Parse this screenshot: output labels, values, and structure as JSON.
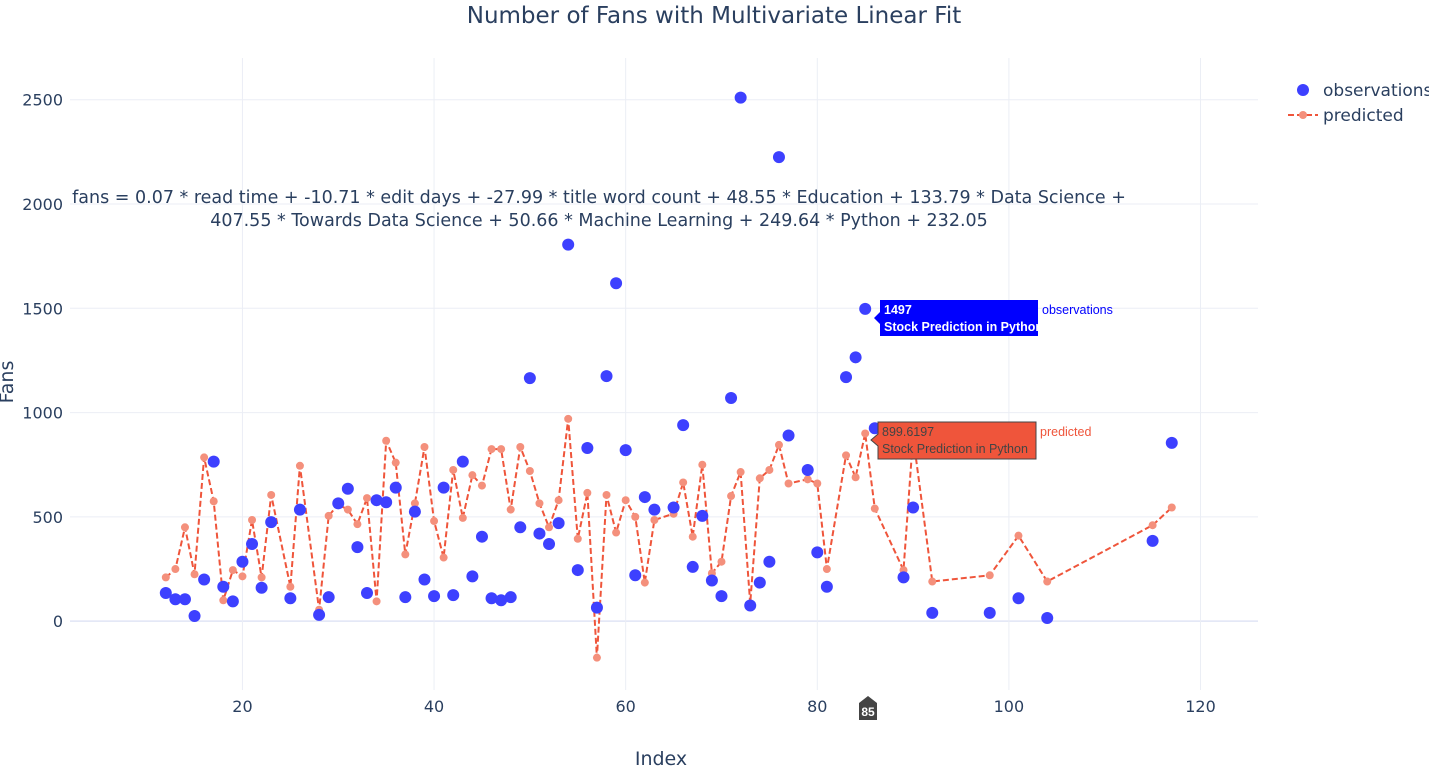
{
  "chart_data": {
    "type": "scatter",
    "title": "Number of Fans with Multivariate Linear Fit",
    "xlabel": "Index",
    "ylabel": "Fans",
    "xlim": [
      2,
      126
    ],
    "ylim": [
      -330,
      2700
    ],
    "x_ticks": [
      20,
      40,
      60,
      80,
      100,
      120
    ],
    "y_ticks": [
      0,
      500,
      1000,
      1500,
      2000,
      2500
    ],
    "grid": true,
    "legend_position": "top-right",
    "annotation": [
      "fans = 0.07 * read time + -10.71 * edit days + -27.99 * title word count + 48.55 * Education + 133.79 * Data Science +",
      "407.55 * Towards Data Science + 50.66 * Machine Learning + 249.64 * Python + 232.05"
    ],
    "series": [
      {
        "name": "observations",
        "mode": "markers",
        "color": "#3d40ff",
        "x": [
          12,
          13,
          14,
          15,
          16,
          17,
          18,
          19,
          20,
          21,
          22,
          23,
          25,
          26,
          28,
          29,
          30,
          31,
          32,
          33,
          34,
          35,
          36,
          37,
          38,
          39,
          40,
          41,
          42,
          43,
          44,
          45,
          46,
          47,
          48,
          49,
          50,
          51,
          52,
          53,
          54,
          55,
          56,
          57,
          58,
          59,
          60,
          61,
          62,
          63,
          65,
          66,
          67,
          68,
          69,
          70,
          71,
          72,
          73,
          74,
          75,
          76,
          77,
          79,
          80,
          81,
          83,
          84,
          85,
          86,
          89,
          90,
          92,
          98,
          101,
          104,
          115,
          117
        ],
        "y": [
          135,
          105,
          105,
          25,
          200,
          765,
          165,
          95,
          285,
          370,
          160,
          475,
          110,
          535,
          30,
          115,
          565,
          635,
          355,
          135,
          580,
          570,
          640,
          115,
          525,
          200,
          120,
          640,
          125,
          765,
          215,
          405,
          110,
          100,
          115,
          450,
          1165,
          420,
          370,
          470,
          1805,
          245,
          830,
          65,
          1175,
          1620,
          820,
          220,
          595,
          535,
          545,
          940,
          260,
          505,
          195,
          120,
          1070,
          2510,
          75,
          185,
          285,
          2225,
          890,
          725,
          330,
          165,
          1170,
          1265,
          1497,
          925,
          210,
          545,
          40,
          40,
          110,
          15,
          385,
          855
        ]
      },
      {
        "name": "predicted",
        "mode": "lines+markers",
        "color": "#ef553b",
        "x": [
          12,
          13,
          14,
          15,
          16,
          17,
          18,
          19,
          20,
          21,
          22,
          23,
          25,
          26,
          28,
          29,
          30,
          31,
          32,
          33,
          34,
          35,
          36,
          37,
          38,
          39,
          40,
          41,
          42,
          43,
          44,
          45,
          46,
          47,
          48,
          49,
          50,
          51,
          52,
          53,
          54,
          55,
          56,
          57,
          58,
          59,
          60,
          61,
          62,
          63,
          65,
          66,
          67,
          68,
          69,
          70,
          71,
          72,
          73,
          74,
          75,
          76,
          77,
          79,
          80,
          81,
          83,
          84,
          85,
          86,
          89,
          90,
          92,
          98,
          101,
          104,
          115,
          117
        ],
        "y": [
          210,
          250,
          450,
          225,
          785,
          575,
          100,
          245,
          215,
          485,
          210,
          605,
          165,
          745,
          55,
          505,
          560,
          535,
          465,
          590,
          95,
          865,
          760,
          320,
          565,
          835,
          480,
          305,
          725,
          495,
          700,
          650,
          825,
          825,
          535,
          835,
          720,
          565,
          450,
          580,
          970,
          395,
          615,
          -175,
          605,
          425,
          580,
          500,
          185,
          485,
          515,
          665,
          405,
          750,
          230,
          285,
          600,
          715,
          85,
          685,
          725,
          845,
          660,
          680,
          660,
          250,
          795,
          690,
          900,
          540,
          245,
          885,
          190,
          220,
          410,
          190,
          460,
          545
        ]
      }
    ],
    "hover": {
      "x_label": "85",
      "observations": {
        "value": "1497",
        "text": "Stock Prediction in Python",
        "series": "observations"
      },
      "predicted": {
        "value": "899.6197",
        "text": "Stock Prediction in Python",
        "series": "predicted"
      }
    }
  }
}
